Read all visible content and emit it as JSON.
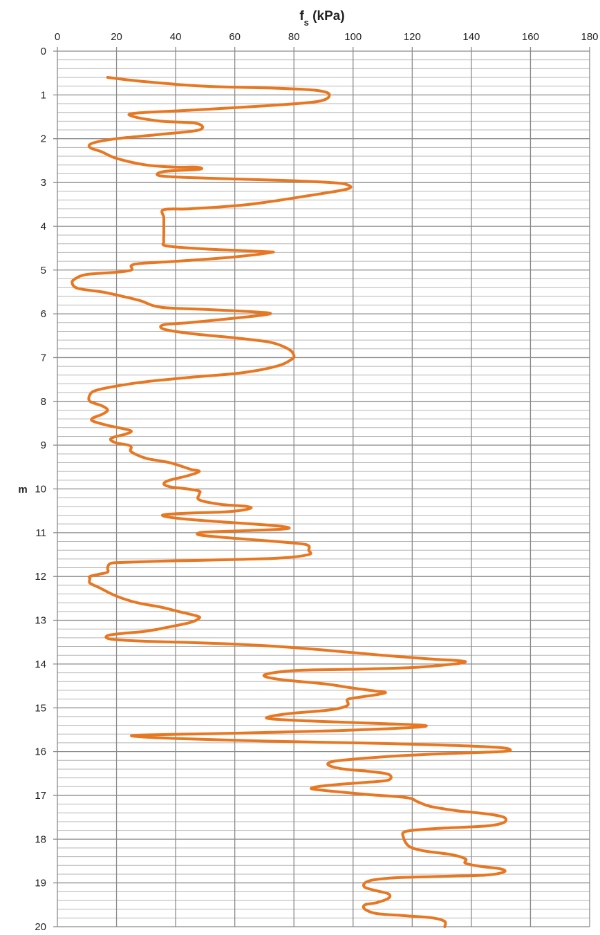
{
  "chart_data": {
    "type": "line",
    "title": "fs (kPa)",
    "title_main": "f",
    "title_sub": "s",
    "title_rest": " (kPa)",
    "xlabel": "fs (kPa)",
    "ylabel": "m",
    "xlim": [
      0,
      180
    ],
    "ylim": [
      0,
      20
    ],
    "y_inverted": true,
    "x_axis_position": "top",
    "x_major_step": 20,
    "y_major_step": 1,
    "y_minor_step": 0.2,
    "grid": true,
    "line_color": "#E87722",
    "x_ticks": [
      "0",
      "20",
      "40",
      "60",
      "80",
      "100",
      "120",
      "140",
      "160",
      "180"
    ],
    "y_ticks": [
      "0",
      "1",
      "2",
      "3",
      "4",
      "5",
      "6",
      "7",
      "8",
      "9",
      "10",
      "11",
      "12",
      "13",
      "14",
      "15",
      "16",
      "17",
      "18",
      "19",
      "20"
    ],
    "series": [
      {
        "points": [
          [
            17,
            0.6
          ],
          [
            30,
            0.7
          ],
          [
            50,
            0.8
          ],
          [
            75,
            0.85
          ],
          [
            88,
            0.9
          ],
          [
            92,
            1.0
          ],
          [
            88,
            1.15
          ],
          [
            70,
            1.25
          ],
          [
            45,
            1.35
          ],
          [
            26,
            1.42
          ],
          [
            26,
            1.5
          ],
          [
            35,
            1.6
          ],
          [
            47,
            1.65
          ],
          [
            48,
            1.8
          ],
          [
            35,
            1.9
          ],
          [
            20,
            2.0
          ],
          [
            12,
            2.1
          ],
          [
            11,
            2.2
          ],
          [
            15,
            2.3
          ],
          [
            20,
            2.45
          ],
          [
            30,
            2.6
          ],
          [
            40,
            2.65
          ],
          [
            47,
            2.65
          ],
          [
            48,
            2.7
          ],
          [
            36,
            2.75
          ],
          [
            35,
            2.85
          ],
          [
            50,
            2.9
          ],
          [
            75,
            2.95
          ],
          [
            92,
            3.0
          ],
          [
            98,
            3.05
          ],
          [
            98,
            3.15
          ],
          [
            85,
            3.3
          ],
          [
            65,
            3.5
          ],
          [
            45,
            3.6
          ],
          [
            36,
            3.62
          ],
          [
            36,
            3.8
          ],
          [
            36,
            4.0
          ],
          [
            36,
            4.2
          ],
          [
            36,
            4.35
          ],
          [
            37,
            4.45
          ],
          [
            50,
            4.52
          ],
          [
            70,
            4.58
          ],
          [
            72,
            4.6
          ],
          [
            60,
            4.7
          ],
          [
            40,
            4.8
          ],
          [
            28,
            4.85
          ],
          [
            25,
            4.9
          ],
          [
            25,
            5.0
          ],
          [
            20,
            5.05
          ],
          [
            10,
            5.1
          ],
          [
            6,
            5.2
          ],
          [
            5,
            5.3
          ],
          [
            7,
            5.42
          ],
          [
            15,
            5.5
          ],
          [
            22,
            5.6
          ],
          [
            28,
            5.7
          ],
          [
            35,
            5.85
          ],
          [
            50,
            5.9
          ],
          [
            65,
            5.95
          ],
          [
            72,
            6.0
          ],
          [
            60,
            6.1
          ],
          [
            45,
            6.2
          ],
          [
            36,
            6.25
          ],
          [
            36,
            6.35
          ],
          [
            45,
            6.45
          ],
          [
            60,
            6.55
          ],
          [
            72,
            6.65
          ],
          [
            78,
            6.8
          ],
          [
            80,
            6.95
          ],
          [
            79,
            7.05
          ],
          [
            74,
            7.2
          ],
          [
            62,
            7.35
          ],
          [
            45,
            7.45
          ],
          [
            30,
            7.55
          ],
          [
            20,
            7.65
          ],
          [
            13,
            7.75
          ],
          [
            11,
            7.85
          ],
          [
            11,
            8.0
          ],
          [
            15,
            8.1
          ],
          [
            17,
            8.2
          ],
          [
            15,
            8.3
          ],
          [
            12,
            8.38
          ],
          [
            12,
            8.45
          ],
          [
            17,
            8.55
          ],
          [
            22,
            8.62
          ],
          [
            25,
            8.68
          ],
          [
            23,
            8.75
          ],
          [
            19,
            8.82
          ],
          [
            18,
            8.88
          ],
          [
            20,
            8.95
          ],
          [
            24,
            9.0
          ],
          [
            25,
            9.05
          ],
          [
            25,
            9.15
          ],
          [
            30,
            9.3
          ],
          [
            38,
            9.4
          ],
          [
            45,
            9.55
          ],
          [
            48,
            9.6
          ],
          [
            44,
            9.7
          ],
          [
            38,
            9.8
          ],
          [
            36,
            9.88
          ],
          [
            38,
            9.95
          ],
          [
            44,
            10.0
          ],
          [
            48,
            10.05
          ],
          [
            48,
            10.12
          ],
          [
            48,
            10.25
          ],
          [
            55,
            10.35
          ],
          [
            64,
            10.4
          ],
          [
            65,
            10.45
          ],
          [
            58,
            10.52
          ],
          [
            46,
            10.55
          ],
          [
            37,
            10.58
          ],
          [
            36,
            10.62
          ],
          [
            42,
            10.68
          ],
          [
            55,
            10.75
          ],
          [
            70,
            10.82
          ],
          [
            78,
            10.88
          ],
          [
            76,
            10.92
          ],
          [
            65,
            10.95
          ],
          [
            52,
            10.98
          ],
          [
            48,
            11.0
          ],
          [
            48,
            11.05
          ],
          [
            55,
            11.1
          ],
          [
            70,
            11.18
          ],
          [
            82,
            11.25
          ],
          [
            85,
            11.3
          ],
          [
            85,
            11.4
          ],
          [
            85,
            11.5
          ],
          [
            75,
            11.58
          ],
          [
            55,
            11.62
          ],
          [
            35,
            11.65
          ],
          [
            22,
            11.68
          ],
          [
            18,
            11.7
          ],
          [
            17,
            11.8
          ],
          [
            17,
            11.9
          ],
          [
            14,
            11.95
          ],
          [
            11,
            12.0
          ],
          [
            11,
            12.05
          ],
          [
            11,
            12.15
          ],
          [
            14,
            12.25
          ],
          [
            20,
            12.45
          ],
          [
            27,
            12.6
          ],
          [
            35,
            12.7
          ],
          [
            41,
            12.8
          ],
          [
            47,
            12.9
          ],
          [
            48,
            12.95
          ],
          [
            45,
            13.05
          ],
          [
            38,
            13.15
          ],
          [
            30,
            13.25
          ],
          [
            22,
            13.3
          ],
          [
            17,
            13.35
          ],
          [
            18,
            13.43
          ],
          [
            30,
            13.48
          ],
          [
            50,
            13.52
          ],
          [
            70,
            13.58
          ],
          [
            90,
            13.68
          ],
          [
            110,
            13.8
          ],
          [
            125,
            13.88
          ],
          [
            135,
            13.92
          ],
          [
            138,
            13.95
          ],
          [
            134,
            14.0
          ],
          [
            120,
            14.08
          ],
          [
            100,
            14.12
          ],
          [
            80,
            14.15
          ],
          [
            70,
            14.25
          ],
          [
            75,
            14.35
          ],
          [
            90,
            14.45
          ],
          [
            100,
            14.55
          ],
          [
            108,
            14.62
          ],
          [
            111,
            14.65
          ],
          [
            108,
            14.7
          ],
          [
            100,
            14.78
          ],
          [
            98,
            14.82
          ],
          [
            98,
            14.95
          ],
          [
            92,
            15.05
          ],
          [
            80,
            15.12
          ],
          [
            72,
            15.2
          ],
          [
            72,
            15.25
          ],
          [
            85,
            15.3
          ],
          [
            110,
            15.36
          ],
          [
            124,
            15.4
          ],
          [
            120,
            15.45
          ],
          [
            95,
            15.52
          ],
          [
            60,
            15.58
          ],
          [
            30,
            15.62
          ],
          [
            26,
            15.65
          ],
          [
            40,
            15.7
          ],
          [
            70,
            15.76
          ],
          [
            100,
            15.8
          ],
          [
            130,
            15.85
          ],
          [
            148,
            15.9
          ],
          [
            153,
            15.95
          ],
          [
            150,
            16.0
          ],
          [
            130,
            16.05
          ],
          [
            110,
            16.12
          ],
          [
            96,
            16.2
          ],
          [
            92,
            16.25
          ],
          [
            92,
            16.32
          ],
          [
            97,
            16.4
          ],
          [
            105,
            16.45
          ],
          [
            112,
            16.52
          ],
          [
            112,
            16.65
          ],
          [
            105,
            16.7
          ],
          [
            95,
            16.75
          ],
          [
            88,
            16.8
          ],
          [
            86,
            16.85
          ],
          [
            92,
            16.9
          ],
          [
            105,
            16.98
          ],
          [
            118,
            17.05
          ],
          [
            122,
            17.15
          ],
          [
            126,
            17.25
          ],
          [
            135,
            17.35
          ],
          [
            145,
            17.42
          ],
          [
            151,
            17.5
          ],
          [
            151,
            17.62
          ],
          [
            145,
            17.7
          ],
          [
            130,
            17.75
          ],
          [
            120,
            17.8
          ],
          [
            117,
            17.85
          ],
          [
            117,
            17.95
          ],
          [
            118,
            18.1
          ],
          [
            120,
            18.2
          ],
          [
            125,
            18.28
          ],
          [
            133,
            18.35
          ],
          [
            138,
            18.45
          ],
          [
            138,
            18.55
          ],
          [
            143,
            18.62
          ],
          [
            150,
            18.68
          ],
          [
            151,
            18.75
          ],
          [
            145,
            18.82
          ],
          [
            130,
            18.85
          ],
          [
            115,
            18.88
          ],
          [
            107,
            18.93
          ],
          [
            104,
            19.0
          ],
          [
            104,
            19.1
          ],
          [
            108,
            19.18
          ],
          [
            112,
            19.25
          ],
          [
            112,
            19.35
          ],
          [
            108,
            19.45
          ],
          [
            104,
            19.5
          ],
          [
            104,
            19.6
          ],
          [
            108,
            19.7
          ],
          [
            118,
            19.75
          ],
          [
            127,
            19.8
          ],
          [
            131,
            19.88
          ],
          [
            131,
            20.0
          ]
        ]
      }
    ]
  }
}
